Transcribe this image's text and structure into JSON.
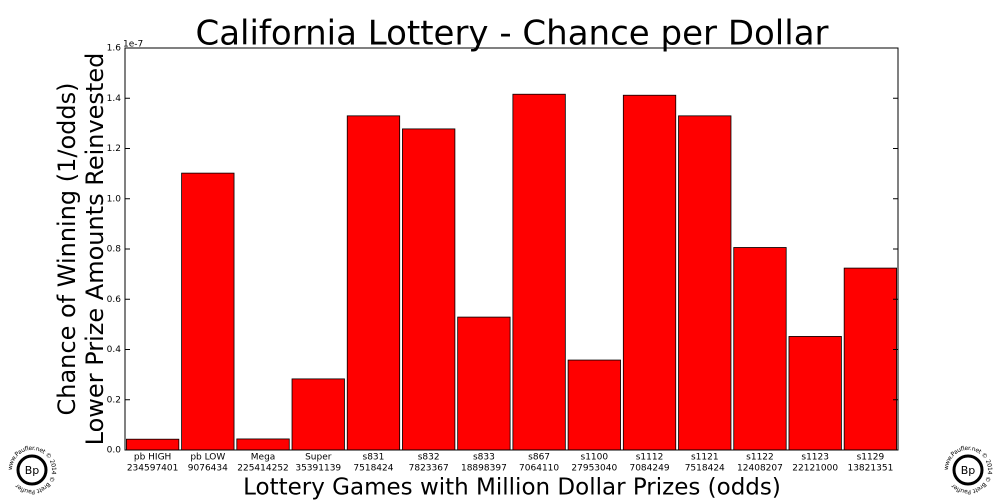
{
  "chart_data": {
    "type": "bar",
    "title": "California Lottery - Chance per Dollar",
    "y_label": [
      "Chance of Winning (1/odds)",
      "Lower Prize Amounts Reinvested"
    ],
    "x_label": "Lottery Games with Million Dollar Prizes (odds)",
    "y_offset_label": "1e-7",
    "categories": [
      "pb HIGH",
      "pb LOW",
      "Mega",
      "Super",
      "s831",
      "s832",
      "s833",
      "s867",
      "s1100",
      "s1112",
      "s1121",
      "s1122",
      "s1123",
      "s1129"
    ],
    "odds": [
      "234597401",
      "9076434",
      "225414252",
      "35391139",
      "7518424",
      "7823367",
      "18898397",
      "7064110",
      "27953040",
      "7084249",
      "7518424",
      "12408207",
      "22121000",
      "13821351"
    ],
    "values": [
      0.043,
      1.102,
      0.044,
      0.283,
      1.33,
      1.278,
      0.529,
      1.416,
      0.358,
      1.412,
      1.33,
      0.806,
      0.452,
      0.724
    ],
    "color": "#ff0000",
    "ylim": [
      0,
      1.6
    ],
    "yticks": [
      {
        "value": 0,
        "label": "0.0"
      },
      0.2,
      0.4,
      0.6,
      0.8,
      {
        "value": 1,
        "label": "1.0"
      },
      1.2,
      1.4,
      1.6
    ],
    "grid": false
  },
  "watermark": {
    "logo": "Bp",
    "ring": "www.Paufler.net © 2014 © Brett Paufler"
  }
}
